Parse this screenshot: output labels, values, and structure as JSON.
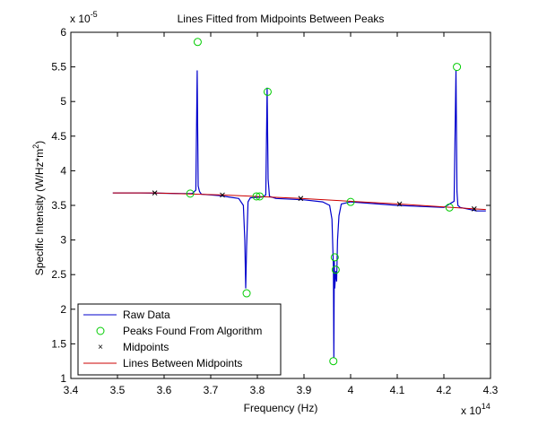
{
  "chart_data": {
    "type": "line",
    "title": "Lines Fitted from Midpoints Between Peaks",
    "xlabel": "Frequency (Hz)",
    "ylabel": "Specific Intensity (W/Hz*m",
    "ylabel_sup": "2",
    "ylabel_end": ")",
    "x_multiplier": "x 10",
    "x_multiplier_exp": "14",
    "y_multiplier": "x 10",
    "y_multiplier_exp": "-5",
    "xlim": [
      3.4,
      4.3
    ],
    "ylim": [
      1,
      6
    ],
    "xticks": [
      "3.4",
      "3.5",
      "3.6",
      "3.7",
      "3.8",
      "3.9",
      "4",
      "4.1",
      "4.2",
      "4.3"
    ],
    "yticks": [
      "1",
      "1.5",
      "2",
      "2.5",
      "3",
      "3.5",
      "4",
      "4.5",
      "5",
      "5.5",
      "6"
    ],
    "grid": false,
    "legend_position": "bottom-left",
    "colors": {
      "raw": "#0000cc",
      "peaks": "#00cc00",
      "mid": "#000000",
      "lines": "#cc0000"
    },
    "series": [
      {
        "name": "Raw Data",
        "style": "line",
        "x": [
          3.49,
          3.55,
          3.6,
          3.64,
          3.66,
          3.668,
          3.671,
          3.673,
          3.676,
          3.68,
          3.72,
          3.76,
          3.77,
          3.773,
          3.775,
          3.777,
          3.78,
          3.785,
          3.81,
          3.818,
          3.821,
          3.823,
          3.826,
          3.84,
          3.9,
          3.94,
          3.955,
          3.96,
          3.963,
          3.964,
          3.965,
          3.966,
          3.968,
          3.97,
          3.972,
          3.975,
          3.98,
          4.0,
          4.1,
          4.2,
          4.222,
          4.226,
          4.228,
          4.23,
          4.235,
          4.25,
          4.27,
          4.29
        ],
        "y": [
          3.68,
          3.68,
          3.675,
          3.67,
          3.67,
          3.72,
          5.45,
          3.78,
          3.7,
          3.66,
          3.64,
          3.6,
          3.5,
          3.0,
          2.3,
          2.9,
          3.55,
          3.61,
          3.62,
          3.65,
          5.2,
          3.88,
          3.63,
          3.6,
          3.58,
          3.55,
          3.5,
          3.3,
          2.6,
          1.3,
          2.7,
          2.3,
          2.55,
          2.4,
          3.0,
          3.35,
          3.52,
          3.55,
          3.5,
          3.47,
          3.56,
          5.45,
          3.7,
          3.5,
          3.47,
          3.45,
          3.42,
          3.42
        ]
      },
      {
        "name": "Peaks Found From Algorithm",
        "style": "marker-o",
        "x": [
          3.656,
          3.672,
          3.777,
          3.798,
          3.805,
          3.822,
          3.963,
          3.966,
          3.968,
          4.0,
          4.212,
          4.228
        ],
        "y": [
          3.67,
          5.86,
          2.23,
          3.63,
          3.63,
          5.14,
          1.25,
          2.75,
          2.57,
          3.55,
          3.47,
          5.5
        ]
      },
      {
        "name": "Midpoints",
        "style": "marker-x",
        "x": [
          3.58,
          3.725,
          3.893,
          4.105,
          4.265
        ],
        "y": [
          3.68,
          3.65,
          3.6,
          3.52,
          3.45
        ]
      },
      {
        "name": "Lines Between Midpoints",
        "style": "line",
        "x": [
          3.49,
          3.58,
          3.725,
          3.893,
          4.105,
          4.265,
          4.29
        ],
        "y": [
          3.68,
          3.68,
          3.65,
          3.6,
          3.52,
          3.45,
          3.44
        ]
      }
    ]
  }
}
